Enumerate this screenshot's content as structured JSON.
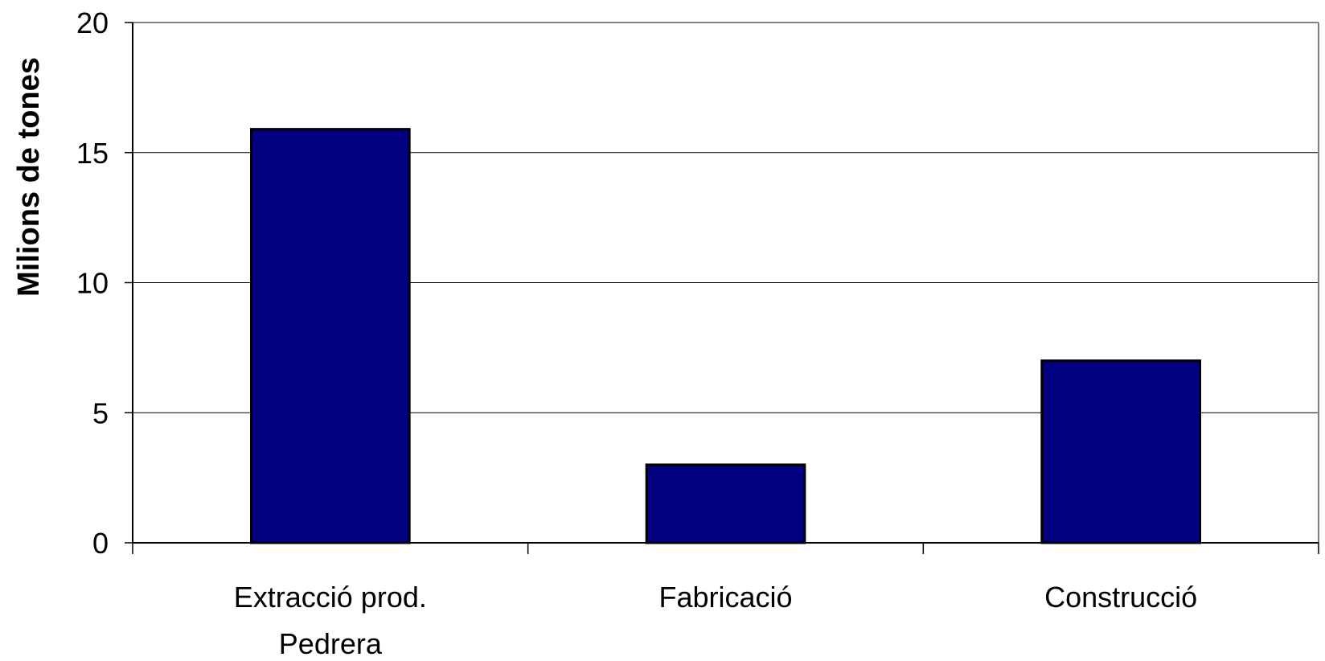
{
  "chart_data": {
    "type": "bar",
    "title": "",
    "xlabel": "",
    "ylabel": "Milions de tones",
    "categories": [
      [
        "Extracció prod.",
        "Pedrera"
      ],
      [
        "Fabricació"
      ],
      [
        "Construcció"
      ]
    ],
    "values": [
      15.9,
      3.0,
      7.0
    ],
    "ylim": [
      0,
      20
    ],
    "yticks": [
      0,
      5,
      10,
      15,
      20
    ],
    "grid": true,
    "legend": "none",
    "colors": {
      "bar_fill": "#000080",
      "bar_stroke": "#000000",
      "grid": "#000000",
      "axis": "#808080"
    }
  }
}
